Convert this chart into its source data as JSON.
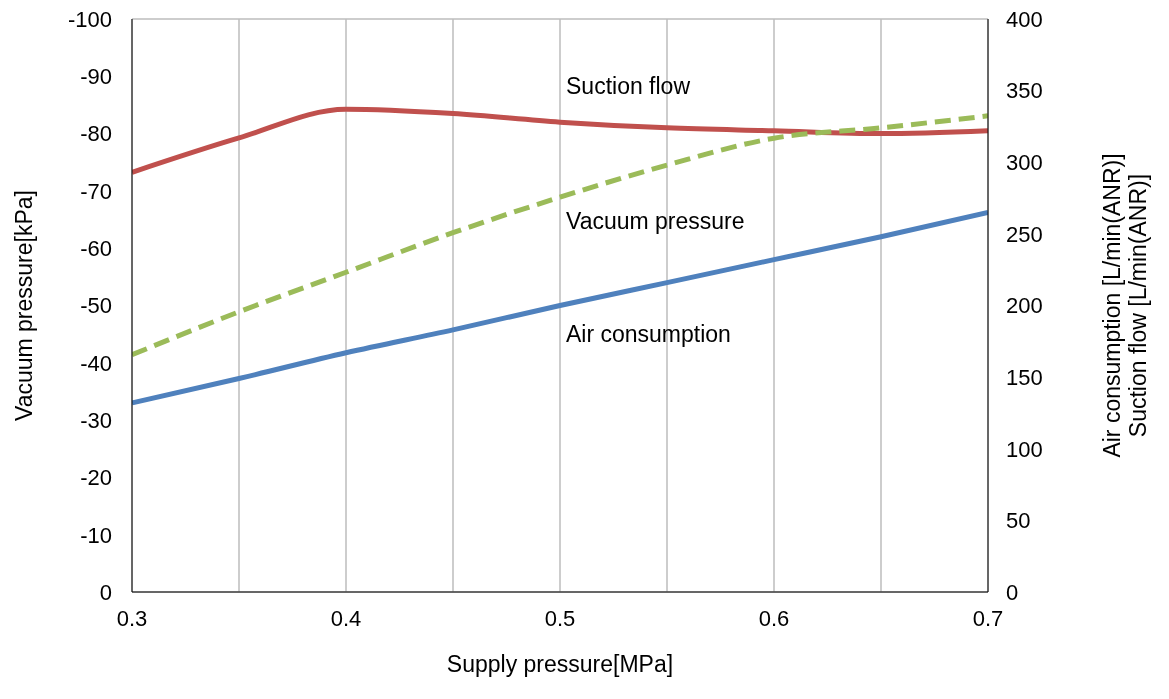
{
  "chart_data": {
    "type": "line",
    "xlabel": "Supply pressure[MPa]",
    "ylabel": "Vacuum pressure[kPa]",
    "y2label": "Air consumption [L/min(ANR)]\nSuction flow [L/min(ANR)]",
    "xlim": [
      0.3,
      0.7
    ],
    "xticks": [
      0.3,
      {
        "value": 0.35,
        "label": null
      },
      0.4,
      {
        "value": 0.45,
        "label": null
      },
      0.5,
      {
        "value": 0.55,
        "label": null
      },
      0.6,
      {
        "value": 0.65,
        "label": null
      },
      0.7
    ],
    "ylim": [
      0,
      -100
    ],
    "yticks": [
      0,
      -10,
      -20,
      -30,
      -40,
      -50,
      -60,
      -70,
      -80,
      -90,
      -100
    ],
    "y2lim": [
      0,
      400
    ],
    "y2ticks": [
      0,
      50,
      100,
      150,
      200,
      250,
      300,
      350,
      400
    ],
    "grid": true,
    "marker": "none",
    "x": [
      0.3,
      0.35,
      0.4,
      0.45,
      0.5,
      0.55,
      0.6,
      0.65,
      0.7
    ],
    "series": [
      {
        "name": "Suction flow",
        "color": "#c0504d",
        "axis": "y2",
        "values": [
          293,
          317,
          337,
          334,
          328,
          324,
          322,
          320,
          322
        ]
      },
      {
        "name": "Vacuum pressure",
        "color": "#9bbb59",
        "line_style": "dashed",
        "values": [
          -41.4,
          -48.9,
          -55.8,
          -62.7,
          -68.9,
          -74.5,
          -79.2,
          -81,
          -83.1
        ]
      },
      {
        "name": "Air consumption",
        "color": "#4f81bd",
        "axis": "y2",
        "values": [
          132,
          149,
          167,
          183,
          200,
          216,
          232,
          248,
          265
        ]
      }
    ]
  }
}
